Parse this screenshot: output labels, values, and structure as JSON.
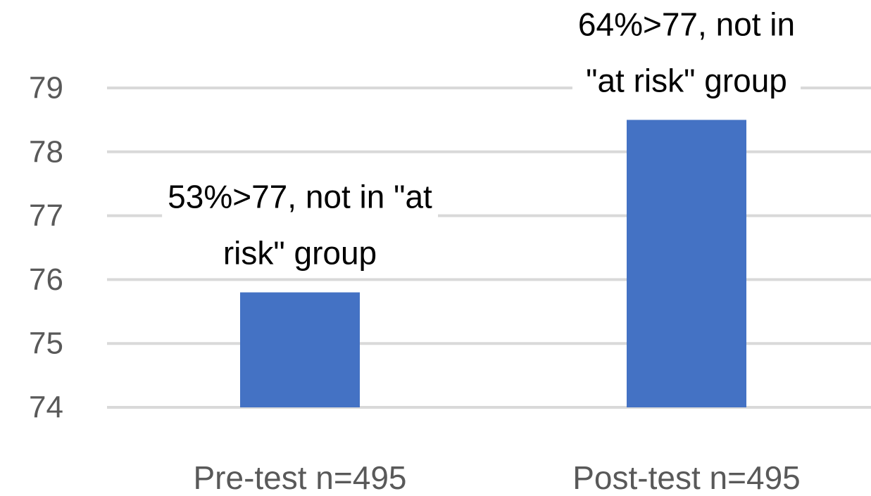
{
  "chart_data": {
    "type": "bar",
    "categories": [
      "Pre-test n=495",
      "Post-test n=495"
    ],
    "values": [
      75.8,
      78.5
    ],
    "ylim": [
      74,
      79
    ],
    "yticks": [
      74,
      75,
      76,
      77,
      78,
      79
    ],
    "grid": true,
    "legend": "none",
    "annotations": [
      {
        "category": "Pre-test n=495",
        "lines": [
          "53%>77, not in \"at",
          "risk\" group"
        ]
      },
      {
        "category": "Post-test n=495",
        "lines": [
          "64%>77, not in",
          "\"at risk\" group"
        ]
      }
    ],
    "colors": {
      "bar": "#4472C4",
      "grid": "#D9D9D9",
      "axis_text": "#595959",
      "annotation_text": "#000000",
      "label_background": "#FFFFFF"
    }
  }
}
